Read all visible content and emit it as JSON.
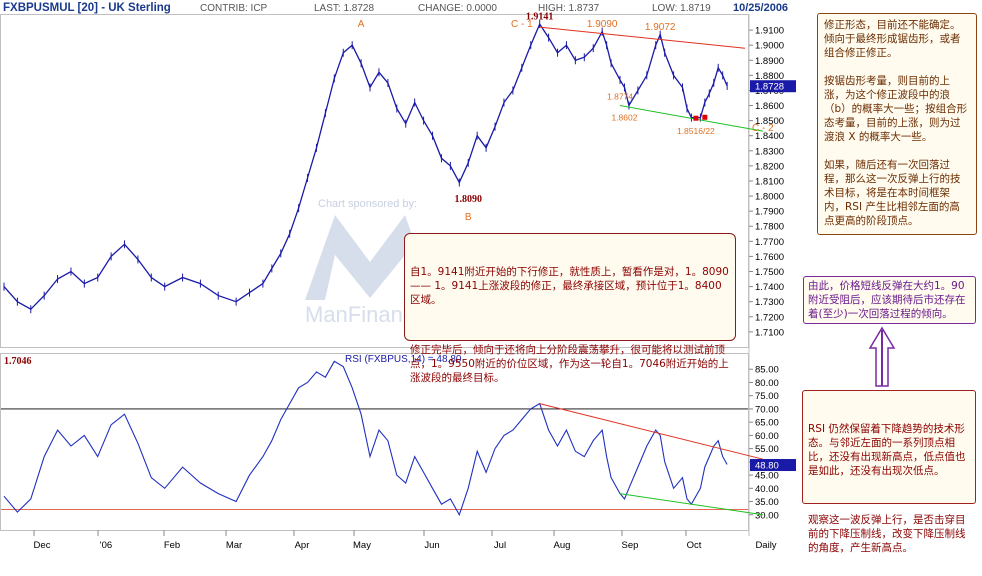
{
  "header": {
    "symbol": "FXBPUSMUL [20] - UK Sterling",
    "contrib": "CONTRIB: ICP",
    "last": "LAST: 1.8728",
    "change": "CHANGE: 0.0000",
    "high": "HIGH: 1.8737",
    "low": "LOW: 1.8719",
    "date": "10/25/2006"
  },
  "colors": {
    "price_line": "#1a1aa8",
    "rsi_line": "#2030c0",
    "upper_trend": "#e03020",
    "lower_trend": "#20c020",
    "rsi_red_line": "#e03020",
    "orange": "#e07020",
    "dark_red": "#8b0000",
    "last_badge": "#1a1aa8",
    "watermark": "#9aa8c8"
  },
  "watermark": {
    "top": "Chart sponsored by:",
    "bottom": "ManFinancial"
  },
  "chart_data": [
    {
      "type": "line",
      "name": "price",
      "ylim": [
        1.7046,
        1.92
      ],
      "yticks": [
        "1.9100",
        "1.9000",
        "1.8900",
        "1.8800",
        "1.8700",
        "1.8600",
        "1.8500",
        "1.8400",
        "1.8300",
        "1.8200",
        "1.8100",
        "1.8000",
        "1.7900",
        "1.7800",
        "1.7700",
        "1.7600",
        "1.7500",
        "1.7400",
        "1.7300",
        "1.7200",
        "1.7100"
      ],
      "x_labels": [
        "Dec",
        "'06",
        "Feb",
        "Mar",
        "Apr",
        "May",
        "Jun",
        "Jul",
        "Aug",
        "Sep",
        "Oct",
        "Daily"
      ],
      "points": [
        [
          0,
          1.74
        ],
        [
          3,
          1.73
        ],
        [
          6,
          1.725
        ],
        [
          9,
          1.734
        ],
        [
          12,
          1.745
        ],
        [
          15,
          1.75
        ],
        [
          18,
          1.742
        ],
        [
          21,
          1.746
        ],
        [
          24,
          1.76
        ],
        [
          27,
          1.768
        ],
        [
          30,
          1.758
        ],
        [
          33,
          1.746
        ],
        [
          36,
          1.74
        ],
        [
          40,
          1.746
        ],
        [
          44,
          1.742
        ],
        [
          48,
          1.734
        ],
        [
          52,
          1.73
        ],
        [
          55,
          1.736
        ],
        [
          58,
          1.742
        ],
        [
          60,
          1.752
        ],
        [
          62,
          1.762
        ],
        [
          64,
          1.775
        ],
        [
          66,
          1.792
        ],
        [
          68,
          1.812
        ],
        [
          70,
          1.832
        ],
        [
          72,
          1.855
        ],
        [
          74,
          1.878
        ],
        [
          76,
          1.895
        ],
        [
          78,
          1.9
        ],
        [
          80,
          1.888
        ],
        [
          82,
          1.872
        ],
        [
          84,
          1.882
        ],
        [
          86,
          1.875
        ],
        [
          88,
          1.858
        ],
        [
          90,
          1.848
        ],
        [
          92,
          1.862
        ],
        [
          94,
          1.85
        ],
        [
          96,
          1.84
        ],
        [
          98,
          1.825
        ],
        [
          100,
          1.82
        ],
        [
          102,
          1.809
        ],
        [
          104,
          1.822
        ],
        [
          106,
          1.84
        ],
        [
          108,
          1.832
        ],
        [
          110,
          1.846
        ],
        [
          112,
          1.862
        ],
        [
          114,
          1.87
        ],
        [
          116,
          1.885
        ],
        [
          118,
          1.9
        ],
        [
          120,
          1.914
        ],
        [
          122,
          1.905
        ],
        [
          124,
          1.895
        ],
        [
          126,
          1.9
        ],
        [
          128,
          1.89
        ],
        [
          130,
          1.892
        ],
        [
          132,
          1.898
        ],
        [
          134,
          1.909
        ],
        [
          135,
          1.9
        ],
        [
          136,
          1.888
        ],
        [
          138,
          1.877
        ],
        [
          139,
          1.872
        ],
        [
          140,
          1.86
        ],
        [
          142,
          1.87
        ],
        [
          144,
          1.88
        ],
        [
          146,
          1.9
        ],
        [
          147,
          1.907
        ],
        [
          148,
          1.895
        ],
        [
          150,
          1.88
        ],
        [
          152,
          1.872
        ],
        [
          153,
          1.858
        ],
        [
          154,
          1.852
        ],
        [
          156,
          1.852
        ],
        [
          157,
          1.862
        ],
        [
          158,
          1.868
        ],
        [
          159,
          1.875
        ],
        [
          160,
          1.885
        ],
        [
          161,
          1.88
        ],
        [
          162,
          1.873
        ]
      ],
      "annotations": [
        {
          "text": "A",
          "x": 80,
          "y": 1.912
        },
        {
          "text": "C - 1",
          "x": 116,
          "y": 1.912
        },
        {
          "text": "1.9141",
          "x": 120,
          "y": 1.917
        },
        {
          "text": "1.9090",
          "x": 134,
          "y": 1.912
        },
        {
          "text": "1.9072",
          "x": 147,
          "y": 1.91
        },
        {
          "text": "1.8774",
          "x": 138,
          "y": 1.864
        },
        {
          "text": "1.8602",
          "x": 139,
          "y": 1.85
        },
        {
          "text": "1.8516/22",
          "x": 155,
          "y": 1.841
        },
        {
          "text": "C - 2",
          "x": 170,
          "y": 1.843
        },
        {
          "text": "1.8090",
          "x": 104,
          "y": 1.796
        },
        {
          "text": "B",
          "x": 104,
          "y": 1.784
        }
      ],
      "upper_trendline": [
        [
          120,
          1.912
        ],
        [
          166,
          1.898
        ]
      ],
      "lower_trendline": [
        [
          138,
          1.86
        ],
        [
          170,
          1.843
        ]
      ],
      "markers": [
        [
          155,
          1.8516
        ],
        [
          157,
          1.8522
        ]
      ],
      "last_value": "1.8728",
      "corner_label": "1.7046"
    },
    {
      "type": "line",
      "name": "RSI",
      "title": "RSI (FXBPUS,14) = 48.80",
      "ylim": [
        25,
        90
      ],
      "yticks": [
        "85.00",
        "80.00",
        "75.00",
        "70.00",
        "65.00",
        "60.00",
        "55.00",
        "50.00",
        "45.00",
        "40.00",
        "35.00",
        "30.00"
      ],
      "levels": [
        70,
        32
      ],
      "points": [
        [
          0,
          37
        ],
        [
          3,
          31
        ],
        [
          6,
          36
        ],
        [
          9,
          52
        ],
        [
          12,
          62
        ],
        [
          15,
          56
        ],
        [
          18,
          60
        ],
        [
          21,
          52
        ],
        [
          24,
          64
        ],
        [
          27,
          68
        ],
        [
          30,
          57
        ],
        [
          33,
          44
        ],
        [
          36,
          40
        ],
        [
          40,
          48
        ],
        [
          44,
          42
        ],
        [
          48,
          38
        ],
        [
          52,
          35
        ],
        [
          55,
          45
        ],
        [
          58,
          52
        ],
        [
          60,
          58
        ],
        [
          62,
          66
        ],
        [
          64,
          72
        ],
        [
          66,
          78
        ],
        [
          68,
          80
        ],
        [
          70,
          84
        ],
        [
          72,
          82
        ],
        [
          74,
          88
        ],
        [
          76,
          86
        ],
        [
          78,
          78
        ],
        [
          80,
          68
        ],
        [
          82,
          52
        ],
        [
          84,
          62
        ],
        [
          86,
          58
        ],
        [
          88,
          45
        ],
        [
          90,
          42
        ],
        [
          92,
          52
        ],
        [
          94,
          46
        ],
        [
          96,
          40
        ],
        [
          98,
          34
        ],
        [
          100,
          36
        ],
        [
          102,
          30
        ],
        [
          104,
          40
        ],
        [
          106,
          54
        ],
        [
          108,
          46
        ],
        [
          110,
          55
        ],
        [
          112,
          60
        ],
        [
          114,
          62
        ],
        [
          116,
          66
        ],
        [
          118,
          70
        ],
        [
          120,
          72
        ],
        [
          122,
          62
        ],
        [
          124,
          56
        ],
        [
          126,
          62
        ],
        [
          128,
          54
        ],
        [
          130,
          52
        ],
        [
          132,
          58
        ],
        [
          134,
          62
        ],
        [
          135,
          52
        ],
        [
          136,
          44
        ],
        [
          138,
          38
        ],
        [
          139,
          36
        ],
        [
          140,
          40
        ],
        [
          142,
          48
        ],
        [
          144,
          56
        ],
        [
          146,
          62
        ],
        [
          147,
          60
        ],
        [
          148,
          50
        ],
        [
          150,
          40
        ],
        [
          152,
          44
        ],
        [
          153,
          36
        ],
        [
          154,
          34
        ],
        [
          156,
          40
        ],
        [
          157,
          48
        ],
        [
          158,
          52
        ],
        [
          159,
          56
        ],
        [
          160,
          58
        ],
        [
          161,
          52
        ],
        [
          162,
          49
        ]
      ],
      "red_trendline": [
        [
          120,
          72
        ],
        [
          170,
          51
        ]
      ],
      "green_trendline": [
        [
          138,
          38
        ],
        [
          170,
          30
        ]
      ],
      "last_value": "48.80"
    }
  ],
  "notes": {
    "right_top": "修正形态，目前还不能确定。倾向于最终形成锯齿形，或者组合修正修正。\n\n按锯齿形考量，则目前的上涨，为这个修正波段中的浪（b）的概率大一些；按组合形态考量，目前的上涨，则为过渡浪 X 的概率大一些。\n\n如果，随后还有一次回落过程，那么这一次反弹上行的技术目标，将是在本时间框架内，RSI 产生比相邻左面的高点更高的阶段顶点。",
    "center_p1": "自1。9141附近开始的下行修正，就性质上，暂看作是对，1。8090 —— 1。9141上涨波段的修正，最终承接区域，预计位于1。8400区域。",
    "center_p2": "修正完毕后，倾向于还将向上分阶段震荡攀升，很可能将以测试前顶点，1。9550附近的价位区域，作为这一轮自1。7046附近开始的上涨波段的最终目标。",
    "purple": "由此，价格短线反弹在大约1。90附近受阻后，应该期待后市还存在着(至少)一次回落过程的倾向。",
    "bottom_p1": "RSI 仍然保留着下降趋势的技术形态。与邻近左面的一系列顶点相比，还没有出现新高点，低点值也是如此，还没有出现次低点。",
    "bottom_p2": "观察这一波反弹上行，是否击穿目前的下降压制线，改变下降压制线的角度，产生新高点。"
  }
}
